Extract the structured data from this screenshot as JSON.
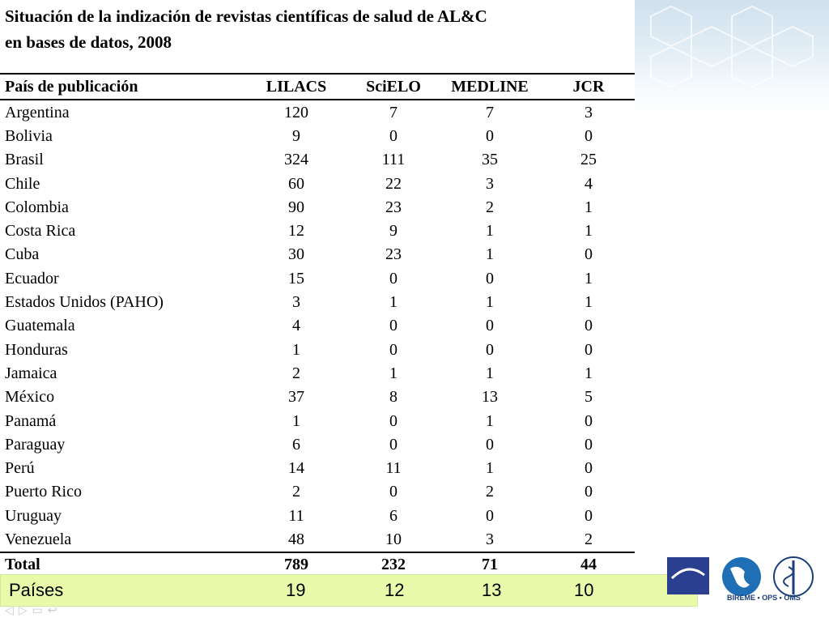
{
  "title_line1": "Situación de la indización de revistas científicas de salud de AL&C",
  "title_line2": "en bases de datos, 2008",
  "headers": [
    "País de publicación",
    "LILACS",
    "SciELO",
    "MEDLINE",
    "JCR"
  ],
  "rows": [
    {
      "country": "Argentina",
      "lilacs": "120",
      "scielo": "7",
      "medline": "7",
      "jcr": "3"
    },
    {
      "country": "Bolivia",
      "lilacs": "9",
      "scielo": "0",
      "medline": "0",
      "jcr": "0"
    },
    {
      "country": "Brasil",
      "lilacs": "324",
      "scielo": "111",
      "medline": "35",
      "jcr": "25"
    },
    {
      "country": "Chile",
      "lilacs": "60",
      "scielo": "22",
      "medline": "3",
      "jcr": "4"
    },
    {
      "country": "Colombia",
      "lilacs": "90",
      "scielo": "23",
      "medline": "2",
      "jcr": "1"
    },
    {
      "country": "Costa Rica",
      "lilacs": "12",
      "scielo": "9",
      "medline": "1",
      "jcr": "1"
    },
    {
      "country": "Cuba",
      "lilacs": "30",
      "scielo": "23",
      "medline": "1",
      "jcr": "0"
    },
    {
      "country": "Ecuador",
      "lilacs": "15",
      "scielo": "0",
      "medline": "0",
      "jcr": "1"
    },
    {
      "country": "Estados Unidos (PAHO)",
      "lilacs": "3",
      "scielo": "1",
      "medline": "1",
      "jcr": "1"
    },
    {
      "country": "Guatemala",
      "lilacs": "4",
      "scielo": "0",
      "medline": "0",
      "jcr": "0"
    },
    {
      "country": "Honduras",
      "lilacs": "1",
      "scielo": "0",
      "medline": "0",
      "jcr": "0"
    },
    {
      "country": "Jamaica",
      "lilacs": "2",
      "scielo": "1",
      "medline": "1",
      "jcr": "1"
    },
    {
      "country": "México",
      "lilacs": "37",
      "scielo": "8",
      "medline": "13",
      "jcr": "5"
    },
    {
      "country": "Panamá",
      "lilacs": "1",
      "scielo": "0",
      "medline": "1",
      "jcr": "0"
    },
    {
      "country": "Paraguay",
      "lilacs": "6",
      "scielo": "0",
      "medline": "0",
      "jcr": "0"
    },
    {
      "country": "Perú",
      "lilacs": "14",
      "scielo": "11",
      "medline": "1",
      "jcr": "0"
    },
    {
      "country": "Puerto Rico",
      "lilacs": "2",
      "scielo": "0",
      "medline": "2",
      "jcr": "0"
    },
    {
      "country": "Uruguay",
      "lilacs": "11",
      "scielo": "6",
      "medline": "0",
      "jcr": "0"
    },
    {
      "country": "Venezuela",
      "lilacs": "48",
      "scielo": "10",
      "medline": "3",
      "jcr": "2"
    }
  ],
  "total": {
    "label": "Total",
    "lilacs": "789",
    "scielo": "232",
    "medline": "71",
    "jcr": "44"
  },
  "paises": {
    "label": "Países",
    "lilacs": "19",
    "scielo": "12",
    "medline": "13",
    "jcr": "10"
  },
  "logo_text": "BIREME • OPS • OMS",
  "colors": {
    "paises_bg": "#e9fbab",
    "logo_blue": "#1a3e7a"
  },
  "icons": [
    "prev-slide-icon",
    "next-slide-icon",
    "menu-icon",
    "return-icon"
  ]
}
